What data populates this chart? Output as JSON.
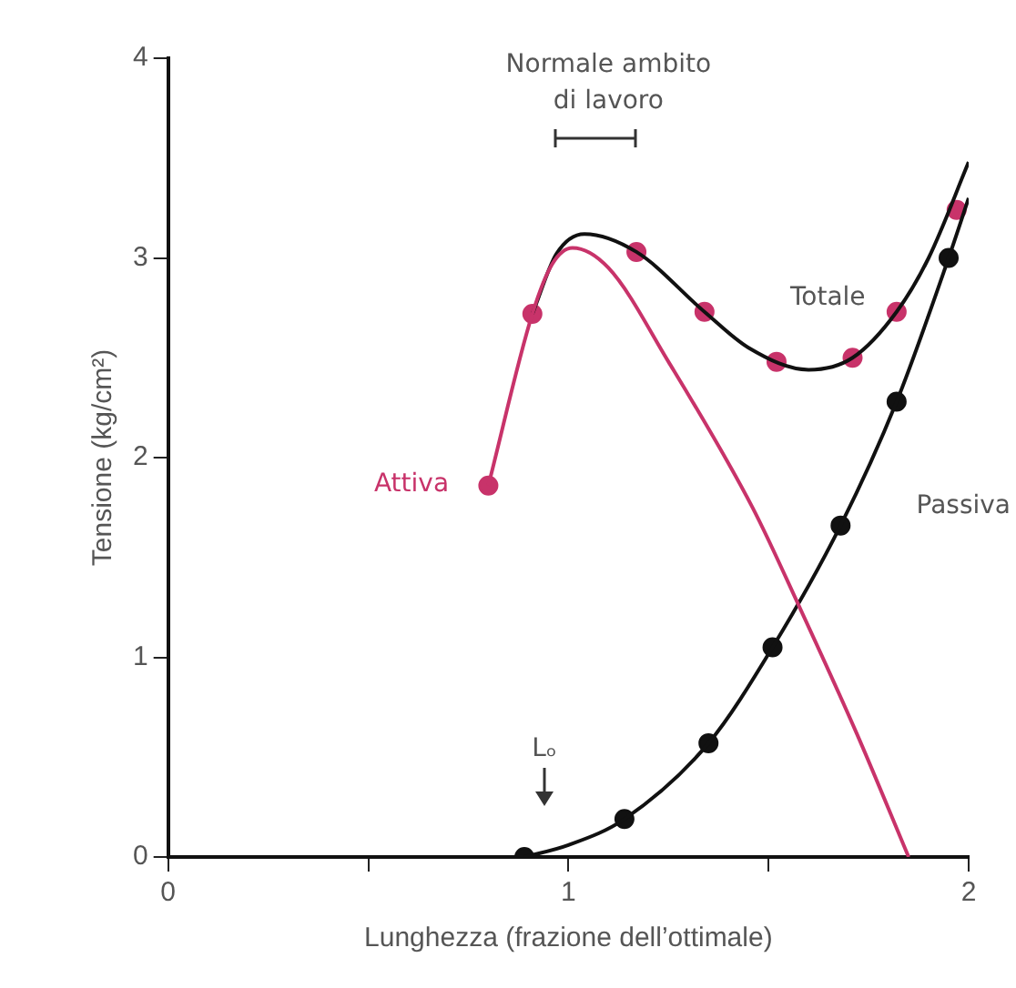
{
  "chart_data": {
    "type": "line",
    "xlabel": "Lunghezza (frazione dell’ottimale)",
    "ylabel": "Tensione (kg/cm²)",
    "xlim": [
      0,
      2
    ],
    "ylim": [
      0,
      4
    ],
    "xticks": [
      0,
      {
        "value": 0.5,
        "label": null
      },
      1,
      {
        "value": 1.5,
        "label": null
      },
      2
    ],
    "yticks": [
      0,
      1,
      2,
      3,
      4
    ],
    "grid": false,
    "legend": false,
    "series": [
      {
        "name": "Attiva",
        "color": "#c8336a",
        "marker": "none",
        "x": [
          0.8,
          0.91,
          0.96,
          1.01,
          1.1,
          1.25,
          1.46,
          1.58,
          1.72,
          1.85
        ],
        "values": [
          1.86,
          2.72,
          2.97,
          3.05,
          2.95,
          2.48,
          1.75,
          1.24,
          0.62,
          0
        ]
      },
      {
        "name": "Totale",
        "color": "#111111",
        "marker": "none",
        "x": [
          0.91,
          0.97,
          1.04,
          1.17,
          1.34,
          1.45,
          1.6,
          1.71,
          1.82,
          1.9,
          2.0
        ],
        "values": [
          2.72,
          3.02,
          3.12,
          3.03,
          2.73,
          2.55,
          2.44,
          2.5,
          2.73,
          3.0,
          3.48
        ]
      },
      {
        "name": "Passiva",
        "color": "#111111",
        "marker": "none",
        "x": [
          0.89,
          1.0,
          1.14,
          1.35,
          1.51,
          1.68,
          1.82,
          1.95,
          2.0
        ],
        "values": [
          0,
          0.06,
          0.19,
          0.57,
          1.05,
          1.66,
          2.28,
          3.0,
          3.3
        ]
      },
      {
        "type": "scatter",
        "color": "#c8336a",
        "marker": "circle",
        "x": [
          0.8,
          0.91,
          1.17,
          1.34,
          1.52,
          1.71,
          1.82,
          1.97
        ],
        "values": [
          1.86,
          2.72,
          3.03,
          2.73,
          2.48,
          2.5,
          2.73,
          3.24
        ]
      },
      {
        "type": "scatter",
        "color": "#111111",
        "marker": "circle",
        "x": [
          0.89,
          1.14,
          1.35,
          1.51,
          1.68,
          1.82,
          1.95
        ],
        "values": [
          0,
          0.19,
          0.57,
          1.05,
          1.66,
          2.28,
          3.0
        ]
      }
    ],
    "annotations": [
      "Normale ambito di lavoro",
      "Lₒ"
    ]
  }
}
